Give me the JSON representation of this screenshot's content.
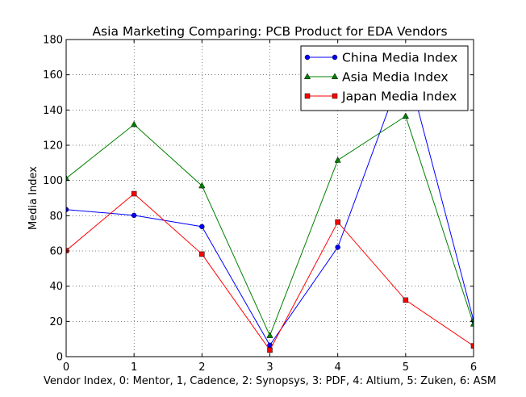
{
  "chart_data": {
    "type": "line",
    "title": "Asia Marketing Comparing: PCB Product for EDA Vendors",
    "xlabel": "Vendor Index, 0: Mentor, 1, Cadence, 2: Synopsys, 3: PDF, 4: Altium, 5: Zuken, 6: ASM",
    "ylabel": "Media Index",
    "x": [
      0,
      1,
      2,
      3,
      4,
      5,
      6
    ],
    "xlim": [
      0,
      6
    ],
    "ylim": [
      0,
      180
    ],
    "xticks": [
      "0",
      "1",
      "2",
      "3",
      "4",
      "5",
      "6"
    ],
    "yticks": [
      "0",
      "20",
      "40",
      "60",
      "80",
      "100",
      "120",
      "140",
      "160",
      "180"
    ],
    "grid": true,
    "legend_position": "top-right",
    "series": [
      {
        "name": "China Media Index",
        "color": "#0000ff",
        "marker": "circle",
        "values": [
          83.5,
          80.2,
          73.8,
          6.5,
          62.1,
          167,
          20.5
        ]
      },
      {
        "name": "Asia Media Index",
        "color": "#008000",
        "marker": "triangle",
        "values": [
          101.2,
          131.8,
          97,
          12,
          111.5,
          136.5,
          18.5
        ]
      },
      {
        "name": "Japan Media Index",
        "color": "#ff0000",
        "marker": "square",
        "values": [
          60.2,
          92.5,
          58.2,
          3.7,
          76.4,
          32.1,
          6.1
        ]
      }
    ]
  }
}
